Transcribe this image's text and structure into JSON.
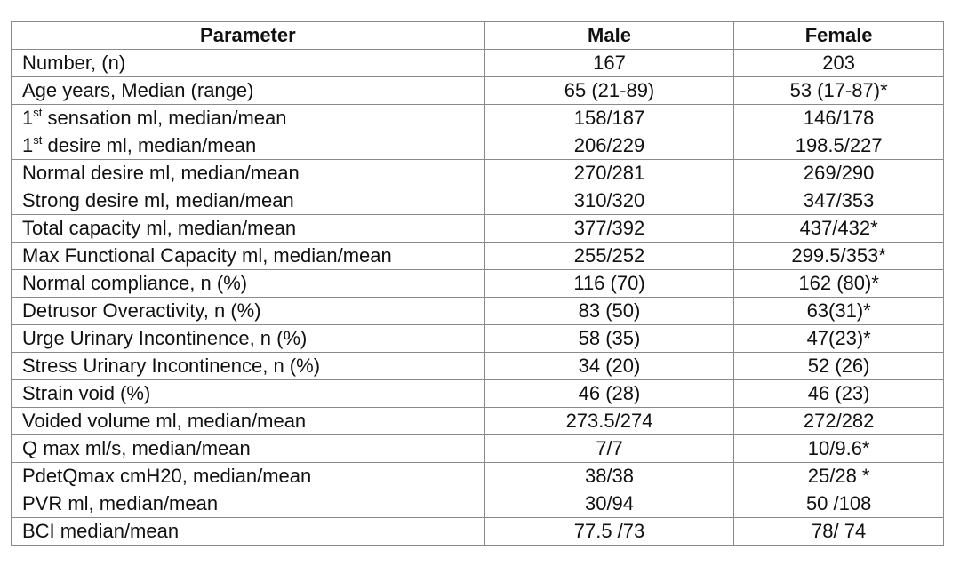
{
  "table": {
    "header": [
      "Parameter",
      "Male",
      "Female"
    ],
    "rows": [
      [
        "Number, (n)",
        "167",
        "203"
      ],
      [
        "Age years, Median (range)",
        "65 (21-89)",
        "53 (17-87)*"
      ],
      [
        {
          "lead": "1",
          "sup": "st",
          "rest": " sensation ml, median/mean"
        },
        "158/187",
        "146/178"
      ],
      [
        {
          "lead": "1",
          "sup": "st",
          "rest": " desire ml, median/mean"
        },
        "206/229",
        "198.5/227"
      ],
      [
        "Normal desire ml, median/mean",
        "270/281",
        "269/290"
      ],
      [
        "Strong desire ml, median/mean",
        "310/320",
        "347/353"
      ],
      [
        "Total capacity ml, median/mean",
        "377/392",
        "437/432*"
      ],
      [
        "Max Functional Capacity ml, median/mean",
        "255/252",
        "299.5/353*"
      ],
      [
        "Normal compliance, n (%)",
        "116 (70)",
        "162 (80)*"
      ],
      [
        "Detrusor Overactivity, n (%)",
        "83 (50)",
        "63(31)*"
      ],
      [
        "Urge Urinary Incontinence, n (%)",
        "58 (35)",
        "47(23)*"
      ],
      [
        "Stress Urinary Incontinence, n (%)",
        "34 (20)",
        "52 (26)"
      ],
      [
        "Strain void (%)",
        "46 (28)",
        "46 (23)"
      ],
      [
        "Voided volume ml, median/mean",
        "273.5/274",
        "272/282"
      ],
      [
        "Q max ml/s, median/mean",
        "7/7",
        "10/9.6*"
      ],
      [
        "PdetQmax cmH20, median/mean",
        "38/38",
        "25/28 *"
      ],
      [
        "PVR ml, median/mean",
        "30/94",
        "50 /108"
      ],
      [
        "BCI median/mean",
        "77.5 /73",
        "78/ 74"
      ]
    ]
  }
}
